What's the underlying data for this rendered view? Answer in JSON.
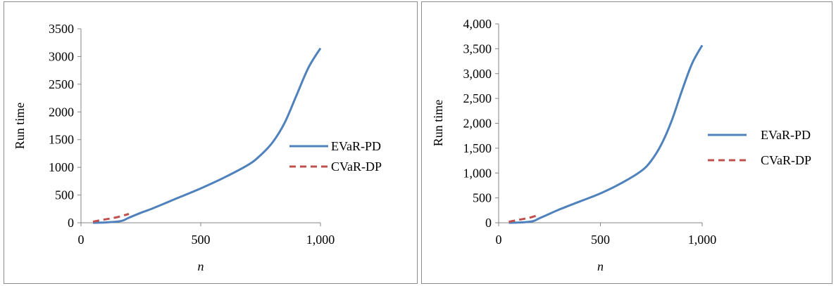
{
  "chart_data": [
    {
      "type": "line",
      "xlabel": "n",
      "ylabel": "Run time",
      "xlim": [
        0,
        1000
      ],
      "ylim": [
        0,
        3500
      ],
      "xticks": [
        0,
        500,
        1000
      ],
      "xtick_labels": [
        "0",
        "500",
        "1,000"
      ],
      "yticks": [
        0,
        500,
        1000,
        1500,
        2000,
        2500,
        3000,
        3500
      ],
      "ytick_labels": [
        "0",
        "500",
        "1000",
        "1500",
        "2000",
        "2500",
        "3000",
        "3500"
      ],
      "grid": false,
      "legend_position": "right",
      "series": [
        {
          "name": "EVaR-PD",
          "color": "#4f81bd",
          "dash": "solid",
          "x": [
            50,
            100,
            150,
            175,
            200,
            250,
            300,
            400,
            500,
            600,
            700,
            750,
            800,
            850,
            900,
            950,
            1000
          ],
          "y": [
            0,
            5,
            20,
            40,
            90,
            180,
            260,
            440,
            620,
            820,
            1050,
            1220,
            1450,
            1800,
            2300,
            2800,
            3150
          ]
        },
        {
          "name": "CVaR-DP",
          "color": "#c0504d",
          "dash": "dashed",
          "x": [
            50,
            100,
            150,
            200
          ],
          "y": [
            20,
            60,
            100,
            160
          ]
        }
      ]
    },
    {
      "type": "line",
      "xlabel": "n",
      "ylabel": "Run time",
      "xlim": [
        0,
        1000
      ],
      "ylim": [
        0,
        4000
      ],
      "xticks": [
        0,
        500,
        1000
      ],
      "xtick_labels": [
        "0",
        "500",
        "1,000"
      ],
      "yticks": [
        0,
        500,
        1000,
        1500,
        2000,
        2500,
        3000,
        3500,
        4000
      ],
      "ytick_labels": [
        "0",
        "500",
        "1,000",
        "1,500",
        "2,000",
        "2,500",
        "3,000",
        "3,500",
        "4,000"
      ],
      "grid": false,
      "legend_position": "right",
      "series": [
        {
          "name": "EVaR-PD",
          "color": "#4f81bd",
          "dash": "solid",
          "x": [
            50,
            100,
            150,
            175,
            200,
            250,
            300,
            400,
            500,
            600,
            700,
            750,
            800,
            850,
            900,
            950,
            1000
          ],
          "y": [
            0,
            5,
            20,
            40,
            90,
            180,
            270,
            430,
            590,
            790,
            1040,
            1250,
            1580,
            2050,
            2650,
            3200,
            3570
          ]
        },
        {
          "name": "CVaR-DP",
          "color": "#c0504d",
          "dash": "dashed",
          "x": [
            50,
            100,
            150,
            200
          ],
          "y": [
            20,
            60,
            100,
            160
          ]
        }
      ]
    }
  ]
}
